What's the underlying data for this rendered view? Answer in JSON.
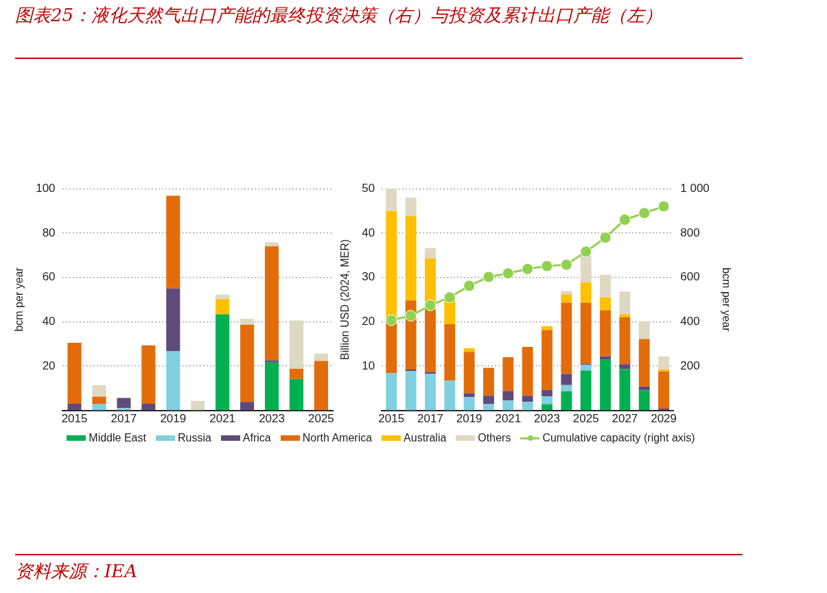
{
  "chart_data": [
    {
      "type": "bar",
      "title": "图表25：液化天然气出口产能的最终投资决策（右）与投资及累计出口产能（左）",
      "stacked": true,
      "ylabel": "bcm per year",
      "ylim": [
        0,
        100
      ],
      "yticks": [
        20,
        40,
        60,
        80,
        100
      ],
      "grid": "y",
      "legend": false,
      "categories": [
        "2015",
        null,
        "2017",
        null,
        "2019",
        null,
        "2021",
        null,
        "2023",
        null,
        "2025"
      ],
      "series": [
        {
          "color": "#00b050",
          "values": [
            0,
            0,
            0,
            0,
            0,
            0,
            43.3,
            0,
            21.6,
            14.2,
            0
          ]
        },
        {
          "color": "#7fd0e0",
          "values": [
            0,
            2.8,
            1,
            0,
            26.8,
            0,
            0,
            0,
            0,
            0,
            0
          ]
        },
        {
          "color": "#5f4b7b",
          "values": [
            3,
            0,
            4.6,
            3,
            28.2,
            0,
            0,
            3.8,
            1,
            0,
            0
          ]
        },
        {
          "color": "#e36c0a",
          "values": [
            27.5,
            3.4,
            0,
            26.3,
            41.8,
            0,
            0,
            34.8,
            51.4,
            4.5,
            22.3
          ]
        },
        {
          "color": "#ffc000",
          "values": [
            0,
            0,
            0,
            0,
            0,
            0,
            6.9,
            0,
            0,
            0,
            0
          ]
        },
        {
          "color": "#ddd9c3",
          "values": [
            0,
            5.1,
            0,
            null,
            0,
            4.3,
            2,
            2.6,
            1.8,
            21.8,
            3.3
          ]
        }
      ]
    },
    {
      "type": "bar",
      "stacked": true,
      "ylabel": "Billion USD (2024, MER)",
      "y2label": "bcm per year",
      "ylim": [
        0,
        50
      ],
      "yticks": [
        10,
        20,
        30,
        40,
        50
      ],
      "y2lim": [
        0,
        1000
      ],
      "y2ticks": [
        200,
        400,
        600,
        800,
        {
          "value": 1000,
          "label": "1 000"
        }
      ],
      "grid": "y",
      "legend": "bottom",
      "marker": "circle",
      "annotations": [
        "资料来源：IEA"
      ],
      "categories": [
        "2015",
        null,
        "2017",
        null,
        "2019",
        null,
        "2021",
        null,
        "2023",
        null,
        "2025",
        null,
        "2027",
        null,
        "2029"
      ],
      "series": [
        {
          "name": "Middle East",
          "color": "#00b050",
          "values": [
            0,
            0,
            0,
            0,
            0,
            0,
            0,
            0,
            1.4,
            4.3,
            9,
            11.4,
            9.3,
            4.5,
            0
          ]
        },
        {
          "name": "Russia",
          "color": "#7fd0e0",
          "values": [
            8.4,
            8.9,
            8.3,
            6.7,
            3,
            1.4,
            2.2,
            1.9,
            1.8,
            1.4,
            1.3,
            0,
            0,
            0,
            0
          ]
        },
        {
          "name": "Africa",
          "color": "#5f4b7b",
          "values": [
            0,
            0.3,
            0.3,
            0,
            0.9,
            1.9,
            2.2,
            1.4,
            1.4,
            2.5,
            0.2,
            0.8,
            1.1,
            0.9,
            0.4
          ]
        },
        {
          "name": "North America",
          "color": "#e36c0a",
          "values": [
            12.6,
            15.6,
            14.2,
            12.7,
            9.3,
            6.3,
            7.6,
            11,
            13.5,
            16.1,
            13.8,
            10.4,
            10.6,
            10.7,
            8.4
          ]
        },
        {
          "name": "Australia",
          "color": "#ffc000",
          "values": [
            24,
            19,
            11.5,
            5.6,
            0.8,
            0,
            0,
            0,
            0.9,
            1.9,
            4.6,
            2.9,
            0.7,
            0,
            0.4
          ]
        },
        {
          "name": "Others",
          "color": "#ddd9c3",
          "values": [
            5,
            4.2,
            2.3,
            0,
            null,
            0,
            0,
            0,
            0,
            0.7,
            6,
            5.1,
            5.1,
            4,
            3
          ]
        },
        {
          "name": "Cumulative capacity (right axis)",
          "type": "line",
          "axis": "y2",
          "color": "#92d050",
          "values": [
            407,
            427,
            474,
            510,
            562,
            602,
            618,
            638,
            651,
            657,
            716,
            779,
            860,
            890,
            920
          ]
        }
      ]
    }
  ]
}
